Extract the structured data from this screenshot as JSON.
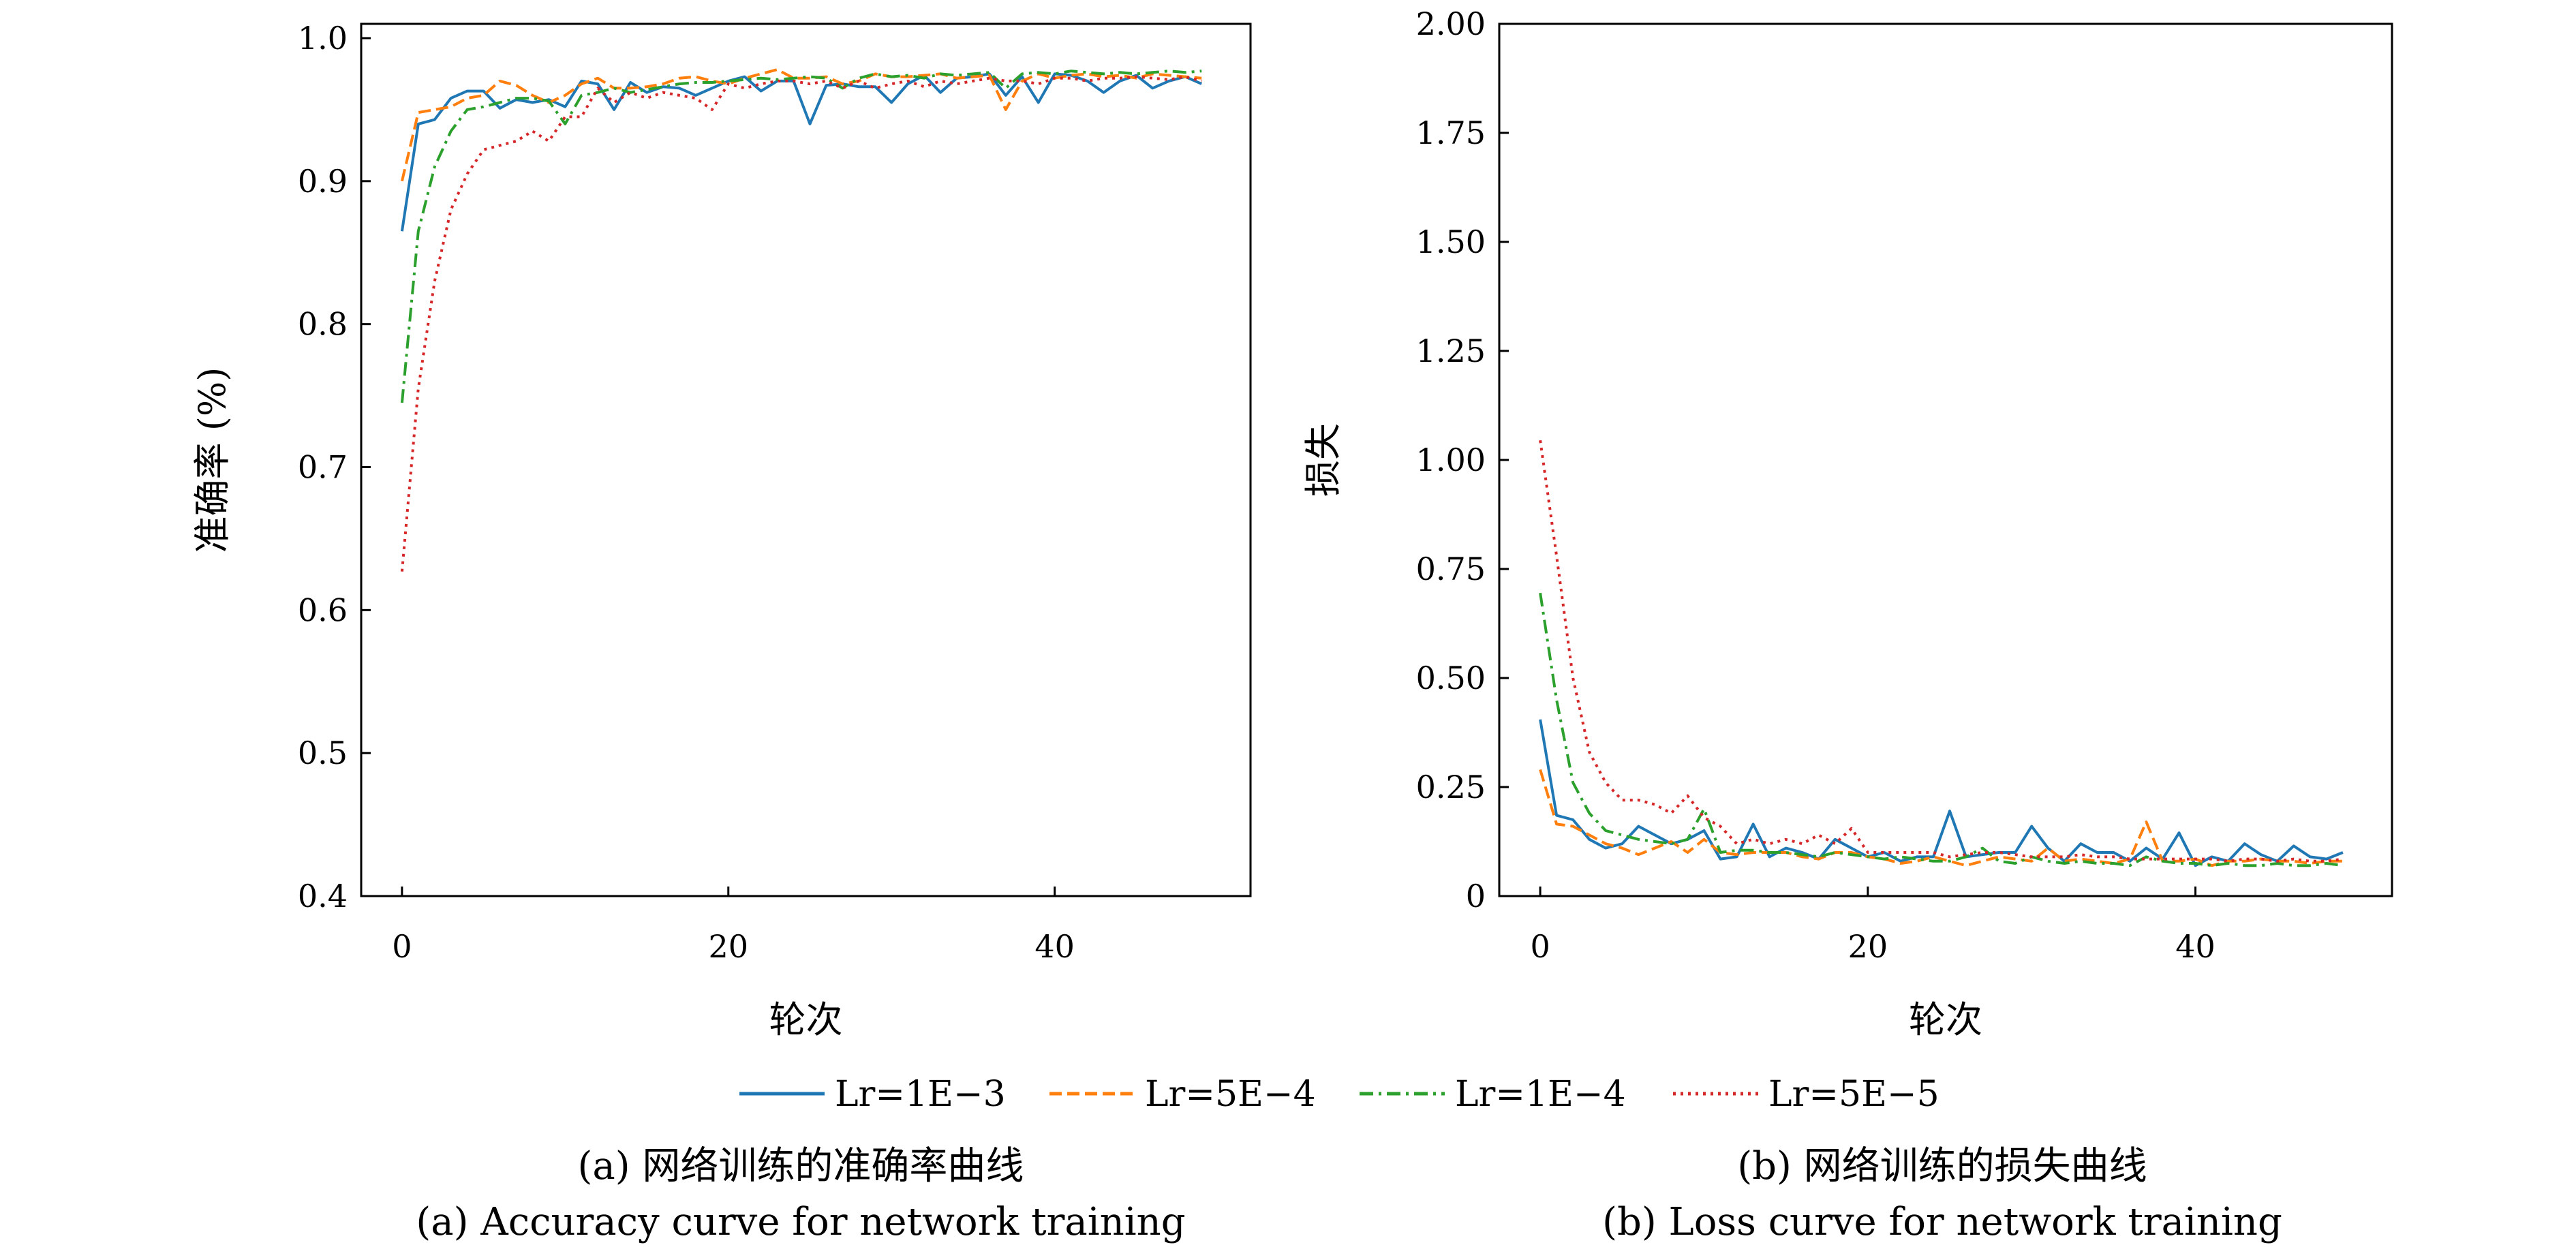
{
  "legend": {
    "items": [
      {
        "label": "Lr=1E−3",
        "color": "#1f77b4",
        "dash": "solid"
      },
      {
        "label": "Lr=5E−4",
        "color": "#ff7f0e",
        "dash": "dashed"
      },
      {
        "label": "Lr=1E−4",
        "color": "#2ca02c",
        "dash": "dashdot"
      },
      {
        "label": "Lr=5E−5",
        "color": "#d62728",
        "dash": "dotted"
      }
    ]
  },
  "captions": {
    "a_cn": "(a) 网络训练的准确率曲线",
    "a_en": "(a) Accuracy curve for network training",
    "b_cn": "(b) 网络训练的损失曲线",
    "b_en": "(b) Loss curve for network training"
  },
  "chart_data": [
    {
      "type": "line",
      "title": "",
      "xlabel": "轮次",
      "ylabel": "准确率 (%)",
      "xlim": [
        -2.5,
        52
      ],
      "ylim": [
        0.4,
        1.01
      ],
      "xticks": [
        0,
        20,
        40
      ],
      "xtick_labels": [
        "0",
        "20",
        "40"
      ],
      "yticks": [
        0.4,
        0.5,
        0.6,
        0.7,
        0.8,
        0.9,
        1.0
      ],
      "ytick_labels": [
        "0.4",
        "0.5",
        "0.6",
        "0.7",
        "0.8",
        "0.9",
        "1.0"
      ],
      "grid": false,
      "series": [
        {
          "name": "Lr=1E−3",
          "values": [
            0.865,
            0.94,
            0.943,
            0.958,
            0.963,
            0.963,
            0.951,
            0.957,
            0.955,
            0.957,
            0.952,
            0.97,
            0.968,
            0.95,
            0.969,
            0.962,
            0.966,
            0.965,
            0.96,
            0.965,
            0.97,
            0.973,
            0.963,
            0.97,
            0.97,
            0.94,
            0.967,
            0.968,
            0.966,
            0.966,
            0.955,
            0.968,
            0.974,
            0.962,
            0.972,
            0.973,
            0.975,
            0.96,
            0.973,
            0.955,
            0.975,
            0.974,
            0.97,
            0.962,
            0.97,
            0.974,
            0.965,
            0.97,
            0.973,
            0.968
          ]
        },
        {
          "name": "Lr=5E−4",
          "values": [
            0.9,
            0.948,
            0.95,
            0.952,
            0.958,
            0.96,
            0.97,
            0.967,
            0.96,
            0.955,
            0.96,
            0.968,
            0.972,
            0.965,
            0.965,
            0.966,
            0.968,
            0.972,
            0.973,
            0.97,
            0.968,
            0.972,
            0.975,
            0.978,
            0.972,
            0.972,
            0.973,
            0.968,
            0.97,
            0.975,
            0.973,
            0.973,
            0.974,
            0.975,
            0.972,
            0.973,
            0.974,
            0.95,
            0.97,
            0.975,
            0.972,
            0.974,
            0.975,
            0.973,
            0.974,
            0.972,
            0.975,
            0.974,
            0.973,
            0.972
          ]
        },
        {
          "name": "Lr=1E−4",
          "values": [
            0.745,
            0.865,
            0.91,
            0.935,
            0.95,
            0.952,
            0.955,
            0.958,
            0.958,
            0.956,
            0.94,
            0.96,
            0.962,
            0.965,
            0.962,
            0.964,
            0.966,
            0.968,
            0.969,
            0.969,
            0.97,
            0.971,
            0.972,
            0.971,
            0.972,
            0.973,
            0.972,
            0.965,
            0.972,
            0.975,
            0.973,
            0.974,
            0.972,
            0.975,
            0.974,
            0.975,
            0.976,
            0.965,
            0.975,
            0.976,
            0.975,
            0.977,
            0.976,
            0.975,
            0.976,
            0.975,
            0.976,
            0.977,
            0.976,
            0.977
          ]
        },
        {
          "name": "Lr=5E−5",
          "values": [
            0.627,
            0.755,
            0.83,
            0.88,
            0.905,
            0.922,
            0.925,
            0.928,
            0.935,
            0.928,
            0.945,
            0.945,
            0.965,
            0.955,
            0.962,
            0.958,
            0.962,
            0.96,
            0.958,
            0.95,
            0.968,
            0.965,
            0.968,
            0.97,
            0.97,
            0.968,
            0.97,
            0.965,
            0.97,
            0.965,
            0.968,
            0.97,
            0.966,
            0.97,
            0.968,
            0.97,
            0.972,
            0.97,
            0.97,
            0.968,
            0.972,
            0.972,
            0.97,
            0.972,
            0.972,
            0.973,
            0.972,
            0.971,
            0.973,
            0.97
          ]
        }
      ]
    },
    {
      "type": "line",
      "title": "",
      "xlabel": "轮次",
      "ylabel": "损失",
      "xlim": [
        -2.5,
        52
      ],
      "ylim": [
        0,
        2.0
      ],
      "xticks": [
        0,
        20,
        40
      ],
      "xtick_labels": [
        "0",
        "20",
        "40"
      ],
      "yticks": [
        0,
        0.25,
        0.5,
        0.75,
        1.0,
        1.25,
        1.5,
        1.75,
        2.0
      ],
      "ytick_labels": [
        "0",
        "0.25",
        "0.50",
        "0.75",
        "1.00",
        "1.25",
        "1.50",
        "1.75",
        "2.00"
      ],
      "grid": false,
      "series": [
        {
          "name": "Lr=1E−3",
          "values": [
            0.405,
            0.185,
            0.175,
            0.13,
            0.11,
            0.12,
            0.16,
            0.14,
            0.12,
            0.13,
            0.15,
            0.085,
            0.09,
            0.165,
            0.09,
            0.11,
            0.1,
            0.085,
            0.13,
            0.11,
            0.09,
            0.1,
            0.08,
            0.09,
            0.09,
            0.195,
            0.09,
            0.095,
            0.1,
            0.1,
            0.16,
            0.11,
            0.08,
            0.12,
            0.1,
            0.1,
            0.08,
            0.11,
            0.085,
            0.145,
            0.07,
            0.09,
            0.08,
            0.12,
            0.095,
            0.08,
            0.115,
            0.09,
            0.085,
            0.1
          ]
        },
        {
          "name": "Lr=5E−4",
          "values": [
            0.29,
            0.165,
            0.16,
            0.14,
            0.12,
            0.11,
            0.095,
            0.11,
            0.125,
            0.1,
            0.13,
            0.1,
            0.095,
            0.1,
            0.1,
            0.1,
            0.09,
            0.085,
            0.1,
            0.1,
            0.09,
            0.085,
            0.075,
            0.08,
            0.09,
            0.08,
            0.07,
            0.08,
            0.09,
            0.085,
            0.08,
            0.11,
            0.08,
            0.085,
            0.08,
            0.075,
            0.085,
            0.17,
            0.08,
            0.08,
            0.085,
            0.07,
            0.08,
            0.08,
            0.085,
            0.08,
            0.08,
            0.075,
            0.08,
            0.08
          ]
        },
        {
          "name": "Lr=1E−4",
          "values": [
            0.695,
            0.45,
            0.26,
            0.19,
            0.15,
            0.14,
            0.13,
            0.125,
            0.12,
            0.13,
            0.2,
            0.1,
            0.105,
            0.105,
            0.1,
            0.1,
            0.095,
            0.09,
            0.1,
            0.095,
            0.09,
            0.085,
            0.09,
            0.085,
            0.08,
            0.08,
            0.09,
            0.11,
            0.08,
            0.075,
            0.09,
            0.08,
            0.075,
            0.08,
            0.075,
            0.075,
            0.07,
            0.09,
            0.08,
            0.075,
            0.075,
            0.07,
            0.075,
            0.07,
            0.07,
            0.075,
            0.07,
            0.07,
            0.075,
            0.07
          ]
        },
        {
          "name": "Lr=5E−5",
          "values": [
            1.045,
            0.78,
            0.5,
            0.33,
            0.26,
            0.22,
            0.22,
            0.21,
            0.19,
            0.23,
            0.18,
            0.16,
            0.12,
            0.13,
            0.12,
            0.13,
            0.12,
            0.14,
            0.12,
            0.155,
            0.1,
            0.1,
            0.1,
            0.1,
            0.1,
            0.09,
            0.095,
            0.1,
            0.1,
            0.095,
            0.09,
            0.09,
            0.09,
            0.095,
            0.09,
            0.09,
            0.085,
            0.085,
            0.085,
            0.085,
            0.085,
            0.085,
            0.08,
            0.085,
            0.085,
            0.08,
            0.085,
            0.08,
            0.08,
            0.085
          ]
        }
      ]
    }
  ]
}
